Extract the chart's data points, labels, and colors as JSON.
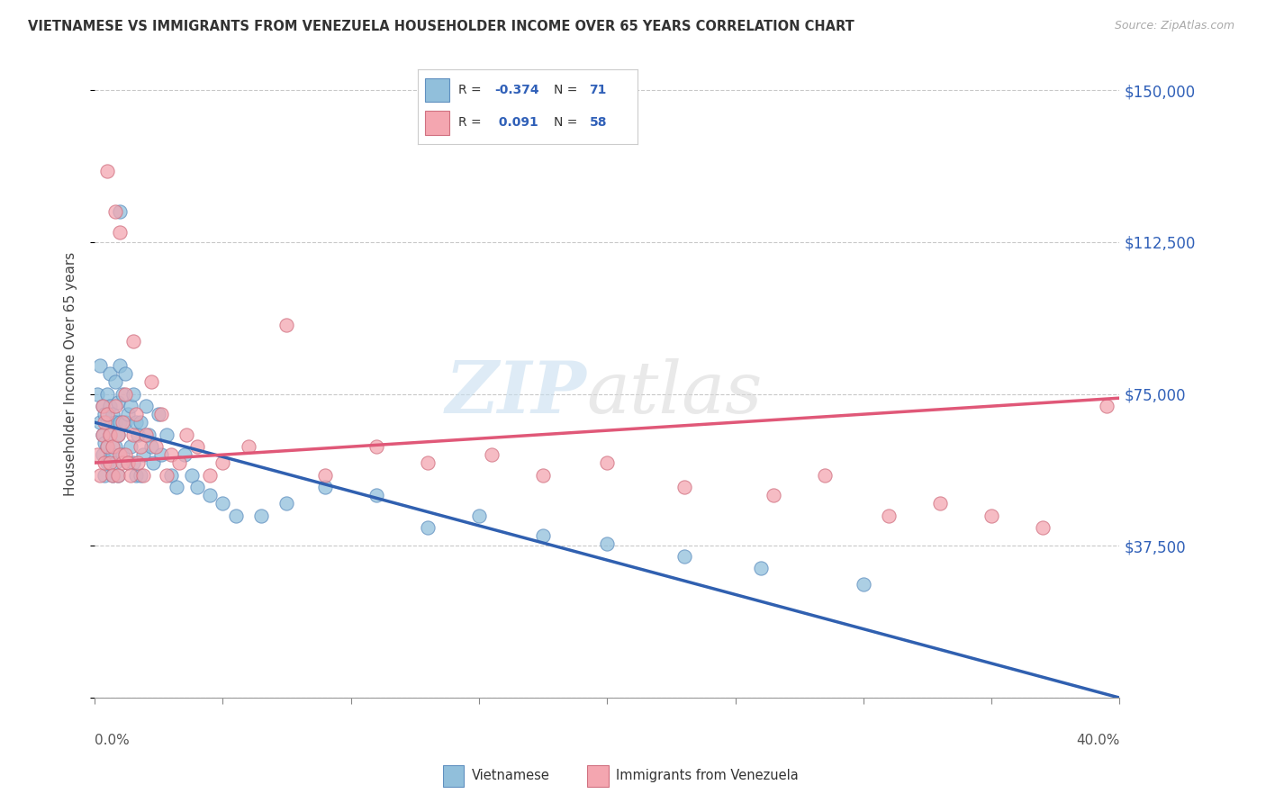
{
  "title": "VIETNAMESE VS IMMIGRANTS FROM VENEZUELA HOUSEHOLDER INCOME OVER 65 YEARS CORRELATION CHART",
  "source": "Source: ZipAtlas.com",
  "ylabel": "Householder Income Over 65 years",
  "yticks": [
    0,
    37500,
    75000,
    112500,
    150000
  ],
  "ytick_labels": [
    "",
    "$37,500",
    "$75,000",
    "$112,500",
    "$150,000"
  ],
  "xlim": [
    0.0,
    0.4
  ],
  "ylim": [
    0,
    160000
  ],
  "color_vietnamese": "#91bfdb",
  "color_venezuela": "#f4a6b0",
  "color_line_blue": "#3060b0",
  "color_line_pink": "#e05878",
  "series1_label": "Vietnamese",
  "series2_label": "Immigrants from Venezuela",
  "viet_R": "-0.374",
  "viet_N": "71",
  "venz_R": "0.091",
  "venz_N": "58",
  "vietnamese_x": [
    0.001,
    0.002,
    0.002,
    0.003,
    0.003,
    0.003,
    0.004,
    0.004,
    0.004,
    0.005,
    0.005,
    0.005,
    0.005,
    0.006,
    0.006,
    0.006,
    0.007,
    0.007,
    0.007,
    0.008,
    0.008,
    0.008,
    0.008,
    0.009,
    0.009,
    0.009,
    0.01,
    0.01,
    0.01,
    0.011,
    0.011,
    0.012,
    0.012,
    0.013,
    0.013,
    0.014,
    0.014,
    0.015,
    0.015,
    0.016,
    0.016,
    0.017,
    0.018,
    0.018,
    0.019,
    0.02,
    0.021,
    0.022,
    0.023,
    0.025,
    0.026,
    0.028,
    0.03,
    0.032,
    0.035,
    0.038,
    0.04,
    0.045,
    0.05,
    0.055,
    0.065,
    0.075,
    0.09,
    0.11,
    0.13,
    0.15,
    0.175,
    0.2,
    0.23,
    0.26,
    0.3
  ],
  "vietnamese_y": [
    75000,
    68000,
    82000,
    65000,
    72000,
    60000,
    63000,
    70000,
    55000,
    68000,
    75000,
    58000,
    62000,
    80000,
    65000,
    72000,
    70000,
    60000,
    55000,
    78000,
    68000,
    62000,
    58000,
    73000,
    65000,
    55000,
    120000,
    82000,
    68000,
    75000,
    60000,
    80000,
    68000,
    70000,
    58000,
    72000,
    62000,
    75000,
    58000,
    68000,
    55000,
    65000,
    68000,
    55000,
    60000,
    72000,
    65000,
    62000,
    58000,
    70000,
    60000,
    65000,
    55000,
    52000,
    60000,
    55000,
    52000,
    50000,
    48000,
    45000,
    45000,
    48000,
    52000,
    50000,
    42000,
    45000,
    40000,
    38000,
    35000,
    32000,
    28000
  ],
  "venezuela_x": [
    0.001,
    0.002,
    0.003,
    0.003,
    0.004,
    0.004,
    0.005,
    0.005,
    0.005,
    0.006,
    0.006,
    0.007,
    0.007,
    0.008,
    0.008,
    0.009,
    0.009,
    0.01,
    0.01,
    0.011,
    0.011,
    0.012,
    0.012,
    0.013,
    0.014,
    0.015,
    0.015,
    0.016,
    0.017,
    0.018,
    0.019,
    0.02,
    0.022,
    0.024,
    0.026,
    0.028,
    0.03,
    0.033,
    0.036,
    0.04,
    0.045,
    0.05,
    0.06,
    0.075,
    0.09,
    0.11,
    0.13,
    0.155,
    0.175,
    0.2,
    0.23,
    0.265,
    0.285,
    0.31,
    0.33,
    0.35,
    0.37,
    0.395
  ],
  "venezuela_y": [
    60000,
    55000,
    65000,
    72000,
    58000,
    68000,
    62000,
    70000,
    130000,
    58000,
    65000,
    55000,
    62000,
    72000,
    120000,
    55000,
    65000,
    60000,
    115000,
    58000,
    68000,
    75000,
    60000,
    58000,
    55000,
    88000,
    65000,
    70000,
    58000,
    62000,
    55000,
    65000,
    78000,
    62000,
    70000,
    55000,
    60000,
    58000,
    65000,
    62000,
    55000,
    58000,
    62000,
    92000,
    55000,
    62000,
    58000,
    60000,
    55000,
    58000,
    52000,
    50000,
    55000,
    45000,
    48000,
    45000,
    42000,
    72000
  ]
}
